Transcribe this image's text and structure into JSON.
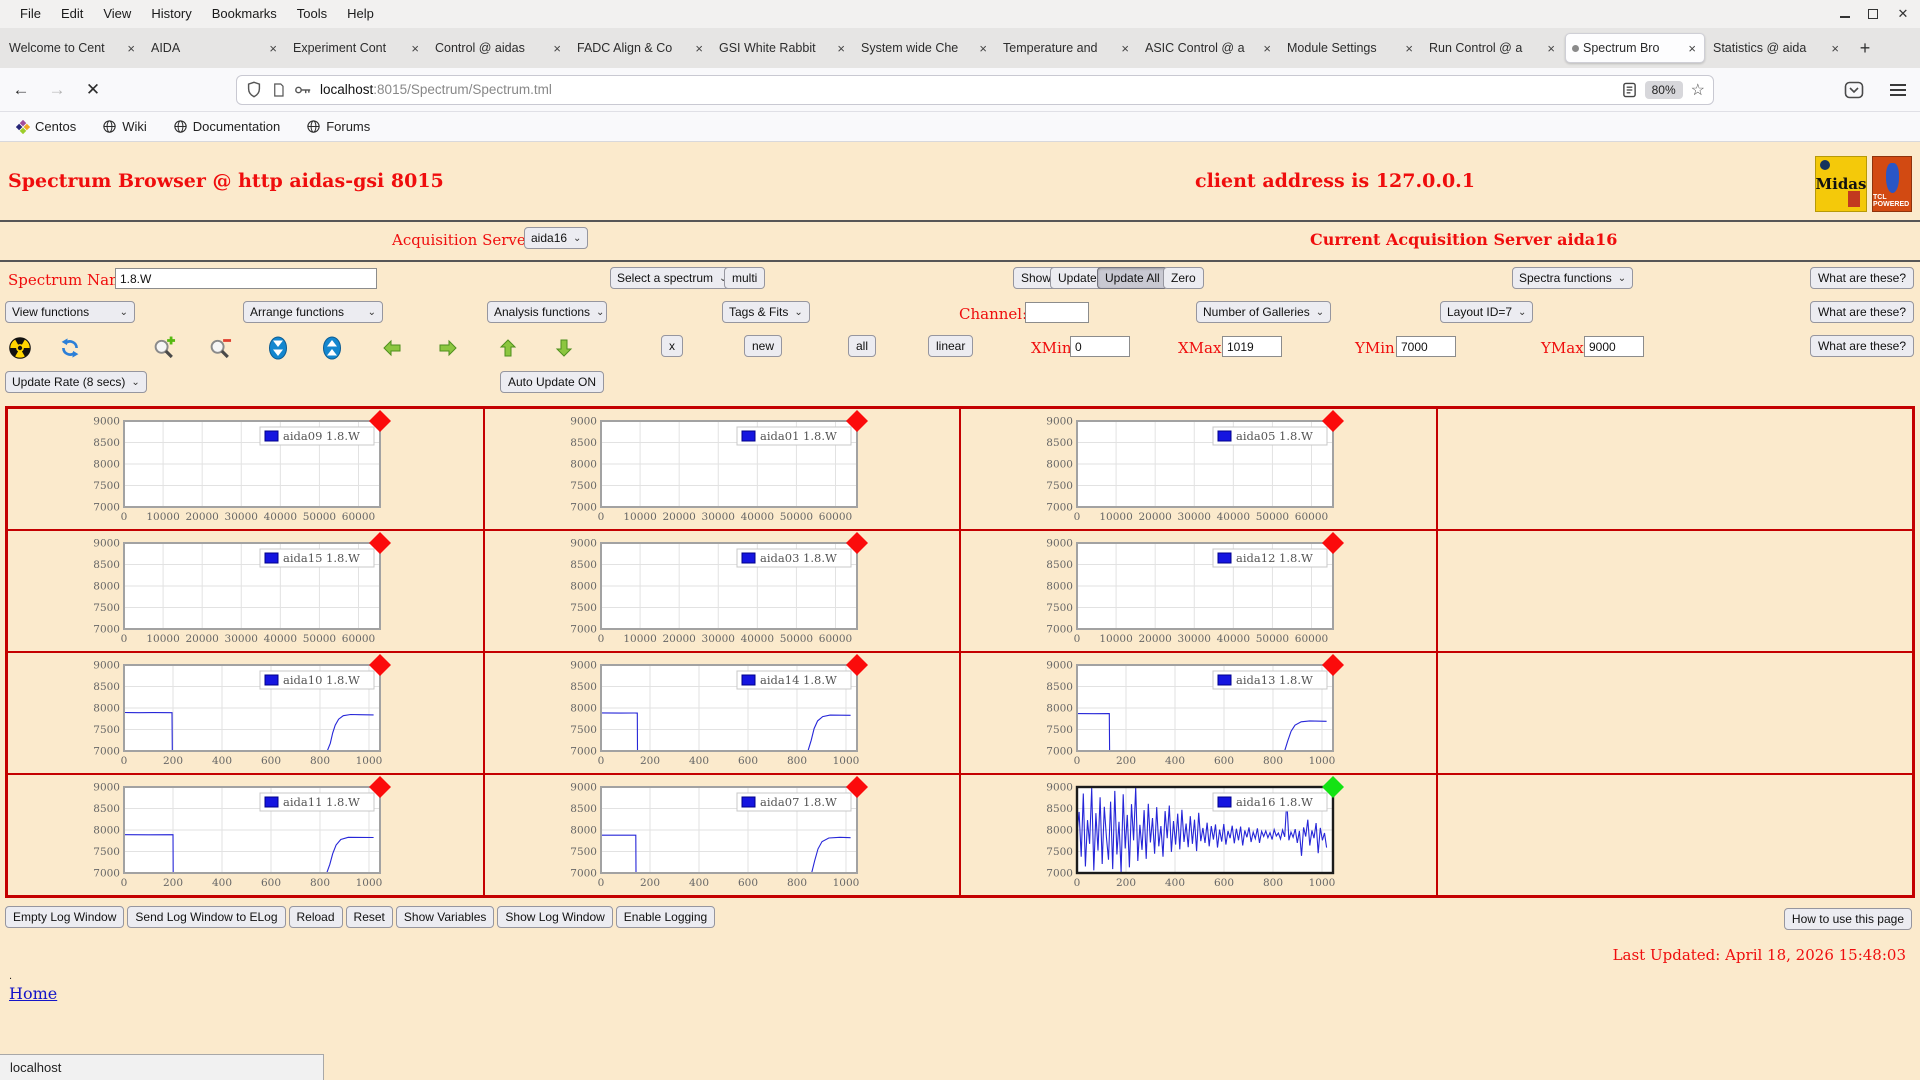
{
  "browser": {
    "menu_items": [
      "File",
      "Edit",
      "View",
      "History",
      "Bookmarks",
      "Tools",
      "Help"
    ],
    "tabs": [
      "Welcome to Cent",
      "AIDA",
      "Experiment Cont",
      "Control @ aidas",
      "FADC Align & Co",
      "GSI White Rabbit",
      "System wide Che",
      "Temperature and",
      "ASIC Control @ a",
      "Module Settings",
      "Run Control @ a",
      "Spectrum Bro",
      "Statistics @ aida"
    ],
    "active_tab_index": 11,
    "close_glyph": "×",
    "new_tab_glyph": "+",
    "back_glyph": "←",
    "forward_glyph": "→",
    "stop_glyph": "✕",
    "url_host": "localhost",
    "url_rest": ":8015/Spectrum/Spectrum.tml",
    "zoom_badge": "80%",
    "star_glyph": "☆",
    "bookmarks": [
      "Centos",
      "Wiki",
      "Documentation",
      "Forums"
    ],
    "status_bar": "localhost"
  },
  "header": {
    "title": "Spectrum Browser @ http aidas-gsi 8015",
    "client_address": "client address is 127.0.0.1",
    "midas_logo": "Midas",
    "tcl_logo": "TCL POWERED",
    "acq_servers_label": "Acquisition Servers",
    "acq_server_selected": "aida16",
    "current_server": "Current Acquisition Server aida16"
  },
  "controls": {
    "spectrum_name_label": "Spectrum Name:",
    "spectrum_name_value": "1.8.W",
    "select_spectrum": "Select a spectrum",
    "multi": "multi",
    "show": "Show",
    "update": "Update",
    "update_all": "Update All",
    "zero": "Zero",
    "spectra_functions": "Spectra functions",
    "what_are_these": "What are these?",
    "view_functions": "View functions",
    "arrange_functions": "Arrange functions",
    "analysis_functions": "Analysis functions",
    "tags_fits": "Tags & Fits",
    "channel_label": "Channel:",
    "channel_value": "",
    "number_of_galleries": "Number of Galleries",
    "layout_id": "Layout ID=7",
    "x_btn": "x",
    "new_btn": "new",
    "all_btn": "all",
    "linear_btn": "linear",
    "xmin_label": "XMin",
    "xmin_value": "0",
    "xmax_label": "XMax",
    "xmax_value": "1019",
    "ymin_label": "YMin",
    "ymin_value": "7000",
    "ymax_label": "YMax",
    "ymax_value": "9000",
    "update_rate": "Update Rate (8 secs)",
    "auto_update": "Auto Update ON"
  },
  "footer": {
    "buttons": [
      "Empty Log Window",
      "Send Log Window to ELog",
      "Reload",
      "Reset",
      "Show Variables",
      "Show Log Window",
      "Enable Logging"
    ],
    "help_button": "How to use this page",
    "last_updated": "Last Updated: April 18, 2026 15:48:03",
    "dot": ".",
    "home_link": "Home"
  },
  "chart_data": {
    "type": "line",
    "grid": true,
    "legend_position": "top-right",
    "colors": {
      "line": "#2626d8",
      "marker_red": "#fb0b0b",
      "marker_green": "#14e314",
      "frame": "#a2a2a2",
      "frame_selected": "#1b1b1b",
      "table_border": "#c40000"
    },
    "plots": [
      {
        "row": 0,
        "col": 0,
        "name": "aida09",
        "legend": "aida09 1.8.W",
        "marker": "red",
        "selected": false,
        "xlim": [
          0,
          65500
        ],
        "ylim": [
          7000,
          9000
        ],
        "x_ticks": [
          0,
          10000,
          20000,
          30000,
          40000,
          50000,
          60000
        ],
        "y_ticks": [
          7000,
          7500,
          8000,
          8500,
          9000
        ],
        "series": null
      },
      {
        "row": 0,
        "col": 1,
        "name": "aida01",
        "legend": "aida01 1.8.W",
        "marker": "red",
        "selected": false,
        "xlim": [
          0,
          65500
        ],
        "ylim": [
          7000,
          9000
        ],
        "x_ticks": [
          0,
          10000,
          20000,
          30000,
          40000,
          50000,
          60000
        ],
        "y_ticks": [
          7000,
          7500,
          8000,
          8500,
          9000
        ],
        "series": null
      },
      {
        "row": 0,
        "col": 2,
        "name": "aida05",
        "legend": "aida05 1.8.W",
        "marker": "red",
        "selected": false,
        "xlim": [
          0,
          65500
        ],
        "ylim": [
          7000,
          9000
        ],
        "x_ticks": [
          0,
          10000,
          20000,
          30000,
          40000,
          50000,
          60000
        ],
        "y_ticks": [
          7000,
          7500,
          8000,
          8500,
          9000
        ],
        "series": null
      },
      {
        "row": 1,
        "col": 0,
        "name": "aida15",
        "legend": "aida15 1.8.W",
        "marker": "red",
        "selected": false,
        "xlim": [
          0,
          65500
        ],
        "ylim": [
          7000,
          9000
        ],
        "x_ticks": [
          0,
          10000,
          20000,
          30000,
          40000,
          50000,
          60000
        ],
        "y_ticks": [
          7000,
          7500,
          8000,
          8500,
          9000
        ],
        "series": null
      },
      {
        "row": 1,
        "col": 1,
        "name": "aida03",
        "legend": "aida03 1.8.W",
        "marker": "red",
        "selected": false,
        "xlim": [
          0,
          65500
        ],
        "ylim": [
          7000,
          9000
        ],
        "x_ticks": [
          0,
          10000,
          20000,
          30000,
          40000,
          50000,
          60000
        ],
        "y_ticks": [
          7000,
          7500,
          8000,
          8500,
          9000
        ],
        "series": null
      },
      {
        "row": 1,
        "col": 2,
        "name": "aida12",
        "legend": "aida12 1.8.W",
        "marker": "red",
        "selected": false,
        "xlim": [
          0,
          65500
        ],
        "ylim": [
          7000,
          9000
        ],
        "x_ticks": [
          0,
          10000,
          20000,
          30000,
          40000,
          50000,
          60000
        ],
        "y_ticks": [
          7000,
          7500,
          8000,
          8500,
          9000
        ],
        "series": null
      },
      {
        "row": 2,
        "col": 0,
        "name": "aida10",
        "legend": "aida10 1.8.W",
        "marker": "red",
        "selected": false,
        "xlim": [
          0,
          1045
        ],
        "ylim": [
          7000,
          9000
        ],
        "x_ticks": [
          0,
          200,
          400,
          600,
          800,
          1000
        ],
        "y_ticks": [
          7000,
          7500,
          8000,
          8500,
          9000
        ],
        "series": {
          "points": [
            [
              0,
              7895
            ],
            [
              60,
              7890
            ],
            [
              120,
              7893
            ],
            [
              196,
              7890
            ],
            [
              197,
              7005
            ],
            [
              830,
              7005
            ],
            [
              842,
              7180
            ],
            [
              852,
              7420
            ],
            [
              862,
              7600
            ],
            [
              876,
              7740
            ],
            [
              895,
              7820
            ],
            [
              925,
              7850
            ],
            [
              960,
              7845
            ],
            [
              1019,
              7840
            ]
          ]
        }
      },
      {
        "row": 2,
        "col": 1,
        "name": "aida14",
        "legend": "aida14 1.8.W",
        "marker": "red",
        "selected": false,
        "xlim": [
          0,
          1045
        ],
        "ylim": [
          7000,
          9000
        ],
        "x_ticks": [
          0,
          200,
          400,
          600,
          800,
          1000
        ],
        "y_ticks": [
          7000,
          7500,
          8000,
          8500,
          9000
        ],
        "series": {
          "points": [
            [
              0,
              7885
            ],
            [
              80,
              7882
            ],
            [
              148,
              7884
            ],
            [
              149,
              7005
            ],
            [
              845,
              7005
            ],
            [
              858,
              7250
            ],
            [
              870,
              7520
            ],
            [
              884,
              7700
            ],
            [
              905,
              7800
            ],
            [
              935,
              7835
            ],
            [
              1019,
              7830
            ]
          ]
        }
      },
      {
        "row": 2,
        "col": 2,
        "name": "aida13",
        "legend": "aida13 1.8.W",
        "marker": "red",
        "selected": false,
        "xlim": [
          0,
          1045
        ],
        "ylim": [
          7000,
          9000
        ],
        "x_ticks": [
          0,
          200,
          400,
          600,
          800,
          1000
        ],
        "y_ticks": [
          7000,
          7500,
          8000,
          8500,
          9000
        ],
        "series": {
          "points": [
            [
              0,
              7870
            ],
            [
              70,
              7868
            ],
            [
              132,
              7870
            ],
            [
              133,
              7005
            ],
            [
              848,
              7005
            ],
            [
              860,
              7230
            ],
            [
              874,
              7460
            ],
            [
              890,
              7600
            ],
            [
              915,
              7680
            ],
            [
              950,
              7700
            ],
            [
              1019,
              7690
            ]
          ]
        }
      },
      {
        "row": 3,
        "col": 0,
        "name": "aida11",
        "legend": "aida11 1.8.W",
        "marker": "red",
        "selected": false,
        "xlim": [
          0,
          1045
        ],
        "ylim": [
          7000,
          9000
        ],
        "x_ticks": [
          0,
          200,
          400,
          600,
          800,
          1000
        ],
        "y_ticks": [
          7000,
          7500,
          8000,
          8500,
          9000
        ],
        "series": {
          "points": [
            [
              0,
              7890
            ],
            [
              100,
              7888
            ],
            [
              200,
              7890
            ],
            [
              201,
              7005
            ],
            [
              828,
              7005
            ],
            [
              840,
              7200
            ],
            [
              852,
              7450
            ],
            [
              866,
              7650
            ],
            [
              885,
              7780
            ],
            [
              915,
              7830
            ],
            [
              1019,
              7825
            ]
          ]
        }
      },
      {
        "row": 3,
        "col": 1,
        "name": "aida07",
        "legend": "aida07 1.8.W",
        "marker": "red",
        "selected": false,
        "xlim": [
          0,
          1045
        ],
        "ylim": [
          7000,
          9000
        ],
        "x_ticks": [
          0,
          200,
          400,
          600,
          800,
          1000
        ],
        "y_ticks": [
          7000,
          7500,
          8000,
          8500,
          9000
        ],
        "series": {
          "points": [
            [
              0,
              7880
            ],
            [
              90,
              7878
            ],
            [
              142,
              7880
            ],
            [
              143,
              7005
            ],
            [
              860,
              7005
            ],
            [
              872,
              7280
            ],
            [
              886,
              7560
            ],
            [
              902,
              7730
            ],
            [
              930,
              7815
            ],
            [
              975,
              7830
            ],
            [
              1019,
              7820
            ]
          ]
        }
      },
      {
        "row": 3,
        "col": 2,
        "name": "aida16",
        "legend": "aida16 1.8.W",
        "marker": "green",
        "selected": true,
        "xlim": [
          0,
          1045
        ],
        "ylim": [
          7000,
          9000
        ],
        "x_ticks": [
          0,
          200,
          400,
          600,
          800,
          1000
        ],
        "y_ticks": [
          7000,
          7500,
          8000,
          8500,
          9000
        ],
        "series": {
          "x_range": [
            0,
            1019
          ],
          "y_values": [
            7950,
            8420,
            7380,
            8850,
            7150,
            8230,
            7680,
            8980,
            7060,
            8390,
            7520,
            8760,
            7210,
            8540,
            7840,
            7310,
            8660,
            7090,
            8910,
            7430,
            8190,
            7020,
            8830,
            7570,
            8350,
            7130,
            8600,
            7760,
            8990,
            7280,
            8120,
            7540,
            8460,
            7330,
            8610,
            7710,
            8280,
            7450,
            8530,
            7620,
            8090,
            7380,
            8440,
            7810,
            8570,
            7490,
            8210,
            7660,
            8380,
            7550,
            8470,
            7720,
            8150,
            7600,
            8320,
            7680,
            8240,
            7510,
            8400,
            7740,
            8050,
            7700,
            8170,
            7620,
            8090,
            7780,
            8130,
            7590,
            8010,
            7730,
            8140,
            7660,
            7980,
            7810,
            8100,
            7690,
            8030,
            7760,
            8080,
            7640,
            7990,
            7830,
            8060,
            7720,
            7950,
            7800,
            8040,
            7700,
            7970,
            7850,
            7980,
            7820,
            7940,
            7780,
            8010,
            7860,
            7930,
            7790,
            8000,
            7840,
            8690,
            7760,
            7950,
            7830,
            8020,
            7700,
            7980,
            7400,
            8060,
            7850,
            8240,
            7640,
            7990,
            7810,
            8160,
            7460,
            8050,
            7760,
            7930,
            7590
          ]
        }
      }
    ]
  }
}
